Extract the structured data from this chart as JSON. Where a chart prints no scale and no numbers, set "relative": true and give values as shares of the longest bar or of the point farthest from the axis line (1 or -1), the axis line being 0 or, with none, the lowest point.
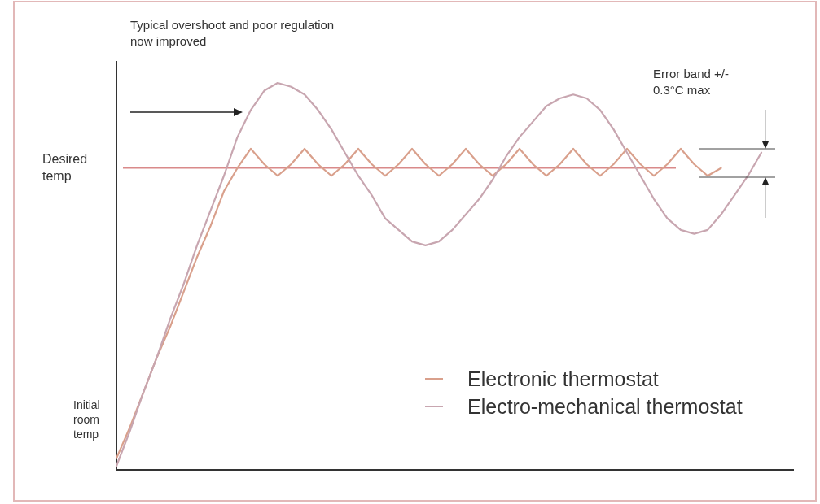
{
  "chart_data": {
    "type": "line",
    "relative": true,
    "categories": [
      null,
      null,
      null,
      null,
      null,
      null,
      null,
      null,
      null,
      null,
      null,
      null,
      null,
      null,
      null,
      null,
      null,
      null,
      null,
      null,
      null,
      null,
      null,
      null,
      null,
      null,
      null,
      null,
      null,
      null,
      null,
      null,
      null,
      null,
      null,
      null,
      null,
      null,
      null,
      null,
      null,
      null,
      null,
      null,
      null,
      null,
      null,
      null,
      null
    ],
    "series": [
      {
        "name": "Electronic thermostat",
        "color": "#d9a08c",
        "values": [
          0.03,
          0.11,
          0.2,
          0.29,
          0.37,
          0.46,
          0.55,
          0.63,
          0.72,
          0.78,
          0.83,
          0.79,
          0.76,
          0.79,
          0.83,
          0.79,
          0.76,
          0.79,
          0.83,
          0.79,
          0.76,
          0.79,
          0.83,
          0.79,
          0.76,
          0.79,
          0.83,
          0.79,
          0.76,
          0.79,
          0.83,
          0.79,
          0.76,
          0.79,
          0.83,
          0.79,
          0.76,
          0.79,
          0.83,
          0.79,
          0.76,
          0.79,
          0.83,
          0.79,
          0.76,
          0.78,
          null,
          null,
          null
        ]
      },
      {
        "name": "Electro-mechanical thermostat",
        "color": "#c8a6b0",
        "values": [
          0.01,
          0.1,
          0.2,
          0.29,
          0.39,
          0.48,
          0.58,
          0.67,
          0.76,
          0.86,
          0.93,
          0.98,
          1,
          0.99,
          0.97,
          0.93,
          0.88,
          0.82,
          0.76,
          0.71,
          0.65,
          0.62,
          0.59,
          0.58,
          0.59,
          0.62,
          0.66,
          0.7,
          0.75,
          0.81,
          0.86,
          0.9,
          0.94,
          0.96,
          0.97,
          0.96,
          0.93,
          0.88,
          0.82,
          0.76,
          0.7,
          0.65,
          0.62,
          0.61,
          0.62,
          0.66,
          0.71,
          0.76,
          0.82
        ]
      }
    ],
    "ref_lines": [
      {
        "axis": "y",
        "value": 0.78,
        "label": "Desired temp",
        "color": "#d98a8a"
      }
    ],
    "annotations": [
      "Typical overshoot and poor regulation now improved",
      "Initial room temp",
      "Error band +/- 0.3°C max"
    ],
    "legend": "bottom right",
    "grid": false
  }
}
